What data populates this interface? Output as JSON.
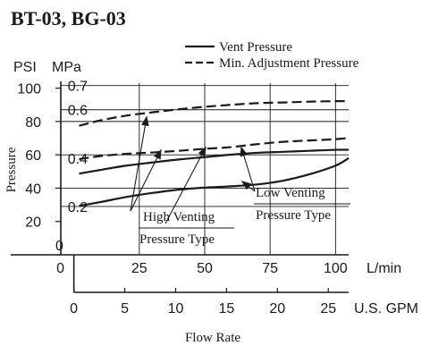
{
  "colors": {
    "ink": "#1a1a1a",
    "background": "#ffffff"
  },
  "chart_data": {
    "type": "line",
    "title": "BT-03, BG-03",
    "xlabel": "Flow Rate",
    "ylabel": "Pressure",
    "grid": true,
    "legend_position": "top-right",
    "legend": [
      {
        "label": "Vent Pressure",
        "style": "solid"
      },
      {
        "label": "Min. Adjustment Pressure",
        "style": "dashed"
      }
    ],
    "axes": {
      "x_primary": {
        "unit": "L/min",
        "ticks": [
          0,
          25,
          50,
          75,
          100
        ],
        "range": [
          -5,
          105
        ]
      },
      "x_secondary": {
        "unit": "U.S. GPM",
        "ticks": [
          0,
          5,
          10,
          15,
          20,
          25
        ],
        "range": [
          0,
          27
        ]
      },
      "y_left": {
        "unit": "PSI",
        "ticks": [
          0,
          20,
          40,
          60,
          80,
          100
        ],
        "range": [
          0,
          103
        ]
      },
      "y_right": {
        "unit": "MPa",
        "ticks": [
          0.2,
          0.4,
          0.6,
          0.7
        ],
        "range": [
          0,
          0.71
        ]
      }
    },
    "annotations": [
      {
        "text_lines": [
          "High Venting",
          "Pressure Type"
        ]
      },
      {
        "text_lines": [
          "Low Venting",
          "Pressure Type"
        ]
      }
    ],
    "series": [
      {
        "style": "dashed",
        "x": [
          2,
          10,
          20,
          30,
          40,
          50,
          60,
          70,
          80,
          90,
          100,
          105
        ],
        "y": [
          77.4,
          80.6,
          83.5,
          85.5,
          87.3,
          88.8,
          90.0,
          91.0,
          91.4,
          91.9,
          92.2,
          92.2
        ]
      },
      {
        "style": "dashed",
        "x": [
          2,
          10,
          20,
          30,
          40,
          50,
          60,
          70,
          80,
          90,
          100,
          105
        ],
        "y": [
          57.4,
          59.2,
          60.6,
          61.4,
          62.4,
          63.6,
          64.6,
          66.4,
          67.8,
          68.6,
          69.4,
          70.1
        ]
      },
      {
        "style": "solid",
        "x": [
          2,
          10,
          20,
          30,
          40,
          50,
          60,
          70,
          80,
          90,
          100,
          105
        ],
        "y": [
          48.7,
          50.9,
          53.5,
          55.4,
          57.2,
          58.6,
          60.1,
          61.2,
          61.8,
          62.4,
          63.0,
          63.0
        ]
      },
      {
        "style": "solid",
        "x": [
          2,
          10,
          20,
          30,
          40,
          50,
          60,
          70,
          80,
          90,
          100,
          105
        ],
        "y": [
          29.3,
          31.6,
          34.7,
          37.1,
          39.1,
          40.3,
          41.1,
          42.2,
          44.5,
          48.3,
          53.5,
          58.0
        ]
      }
    ]
  }
}
